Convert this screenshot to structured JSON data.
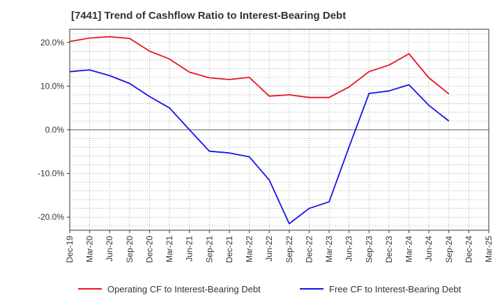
{
  "chart_data": {
    "type": "line",
    "title": "[7441]  Trend of Cashflow Ratio to Interest-Bearing Debt",
    "xlabel": "",
    "ylabel": "",
    "ylim": [
      -23,
      23
    ],
    "y_ticks": [
      "20.0%",
      "10.0%",
      "0.0%",
      "-10.0%",
      "-20.0%"
    ],
    "y_tick_values": [
      20,
      10,
      0,
      -10,
      -20
    ],
    "categories": [
      "Dec-19",
      "Mar-20",
      "Jun-20",
      "Sep-20",
      "Dec-20",
      "Mar-21",
      "Jun-21",
      "Sep-21",
      "Dec-21",
      "Mar-22",
      "Jun-22",
      "Sep-22",
      "Dec-22",
      "Mar-23",
      "Jun-23",
      "Sep-23",
      "Dec-23",
      "Mar-24",
      "Jun-24",
      "Sep-24",
      "Dec-24",
      "Mar-25"
    ],
    "grid": true,
    "legend_position": "bottom",
    "series": [
      {
        "name": "Operating CF to Interest-Bearing Debt",
        "color": "#e8141e",
        "values": [
          20.2,
          21.0,
          21.3,
          20.9,
          18.0,
          16.2,
          13.2,
          11.9,
          11.5,
          12.0,
          7.7,
          8.0,
          7.4,
          7.4,
          9.8,
          13.3,
          14.8,
          17.4,
          11.9,
          8.2,
          null,
          null
        ]
      },
      {
        "name": "Free CF to Interest-Bearing Debt",
        "color": "#1414e6",
        "values": [
          13.3,
          13.7,
          12.4,
          10.6,
          7.6,
          5.0,
          0.0,
          -4.9,
          -5.3,
          -6.2,
          -11.5,
          -21.5,
          -18.0,
          -16.5,
          -3.9,
          8.3,
          8.9,
          10.3,
          5.6,
          2.0,
          null,
          null
        ]
      }
    ]
  }
}
